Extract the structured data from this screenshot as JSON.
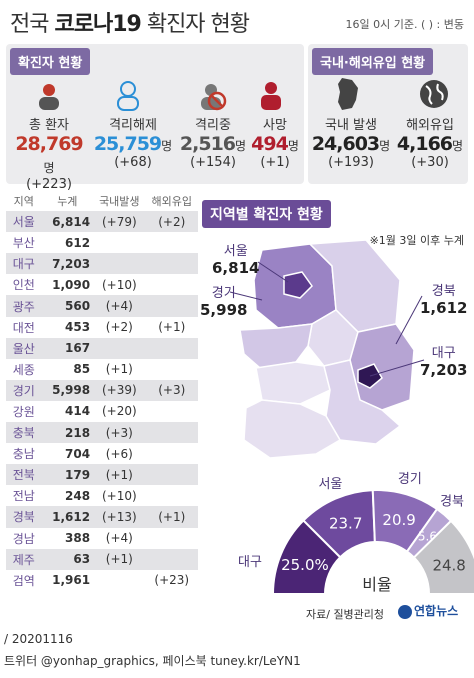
{
  "header": {
    "title_light": "전국",
    "title_bold": "코로나19",
    "title_rest": "확진자 현황",
    "date_note": "16일 0시 기준. ( ) : 변동"
  },
  "status_panel": {
    "heading": "확진자 현황",
    "items": [
      {
        "label": "총 환자",
        "value": "28,769",
        "unit": "명",
        "delta": "(+223)",
        "color": "#c0392b",
        "icon": "person-icon"
      },
      {
        "label": "격리해제",
        "value": "25,759",
        "unit": "명",
        "delta": "(+68)",
        "color": "#2b8fd6",
        "icon": "person-outline-icon"
      },
      {
        "label": "격리중",
        "value": "2,516",
        "unit": "명",
        "delta": "(+154)",
        "color": "#555555",
        "icon": "quarantine-icon"
      },
      {
        "label": "사망",
        "value": "494",
        "unit": "명",
        "delta": "(+1)",
        "color": "#b01e2e",
        "icon": "deceased-icon"
      }
    ]
  },
  "origin_panel": {
    "heading": "국내·해외유입 현황",
    "items": [
      {
        "label": "국내 발생",
        "value": "24,603",
        "unit": "명",
        "delta": "(+193)",
        "icon": "korea-map-icon"
      },
      {
        "label": "해외유입",
        "value": "4,166",
        "unit": "명",
        "delta": "(+30)",
        "icon": "globe-icon"
      }
    ]
  },
  "table": {
    "headers": [
      "지역",
      "누계",
      "국내발생",
      "해외유입"
    ],
    "rows": [
      {
        "region": "서울",
        "total": "6,814",
        "domestic": "(+79)",
        "abroad": "(+2)"
      },
      {
        "region": "부산",
        "total": "612",
        "domestic": "",
        "abroad": ""
      },
      {
        "region": "대구",
        "total": "7,203",
        "domestic": "",
        "abroad": ""
      },
      {
        "region": "인천",
        "total": "1,090",
        "domestic": "(+10)",
        "abroad": ""
      },
      {
        "region": "광주",
        "total": "560",
        "domestic": "(+4)",
        "abroad": ""
      },
      {
        "region": "대전",
        "total": "453",
        "domestic": "(+2)",
        "abroad": "(+1)"
      },
      {
        "region": "울산",
        "total": "167",
        "domestic": "",
        "abroad": ""
      },
      {
        "region": "세종",
        "total": "85",
        "domestic": "(+1)",
        "abroad": ""
      },
      {
        "region": "경기",
        "total": "5,998",
        "domestic": "(+39)",
        "abroad": "(+3)"
      },
      {
        "region": "강원",
        "total": "414",
        "domestic": "(+20)",
        "abroad": ""
      },
      {
        "region": "충북",
        "total": "218",
        "domestic": "(+3)",
        "abroad": ""
      },
      {
        "region": "충남",
        "total": "704",
        "domestic": "(+6)",
        "abroad": ""
      },
      {
        "region": "전북",
        "total": "179",
        "domestic": "(+1)",
        "abroad": ""
      },
      {
        "region": "전남",
        "total": "248",
        "domestic": "(+10)",
        "abroad": ""
      },
      {
        "region": "경북",
        "total": "1,612",
        "domestic": "(+13)",
        "abroad": "(+1)"
      },
      {
        "region": "경남",
        "total": "388",
        "domestic": "(+4)",
        "abroad": ""
      },
      {
        "region": "제주",
        "total": "63",
        "domestic": "(+1)",
        "abroad": ""
      },
      {
        "region": "검역",
        "total": "1,961",
        "domestic": "",
        "abroad": "(+23)"
      }
    ]
  },
  "map": {
    "title": "지역별 확진자 현황",
    "note": "※1월 3일 이후 누계",
    "labels": [
      {
        "name": "서울",
        "value": "6,814"
      },
      {
        "name": "경기",
        "value": "5,998"
      },
      {
        "name": "경북",
        "value": "1,612"
      },
      {
        "name": "대구",
        "value": "7,203"
      }
    ]
  },
  "chart_data": {
    "type": "pie",
    "title": "비율",
    "slices": [
      {
        "label": "대구",
        "value": 25.0,
        "display": "25.0%",
        "color": "#4b2575"
      },
      {
        "label": "서울",
        "value": 23.7,
        "display": "23.7",
        "color": "#6e4a9e"
      },
      {
        "label": "경기",
        "value": 20.9,
        "display": "20.9",
        "color": "#8a6bb6"
      },
      {
        "label": "경북",
        "value": 5.6,
        "display": "5.6",
        "color": "#b6a4d3"
      },
      {
        "label": "",
        "value": 24.8,
        "display": "24.8",
        "color": "#c4c4c8"
      }
    ]
  },
  "footer": {
    "source": "자료/ 질병관리청",
    "logo": "연합뉴스",
    "date": "/ 20201116",
    "social": "트위터 @yonhap_graphics, 페이스북 tuney.kr/LeYN1"
  }
}
